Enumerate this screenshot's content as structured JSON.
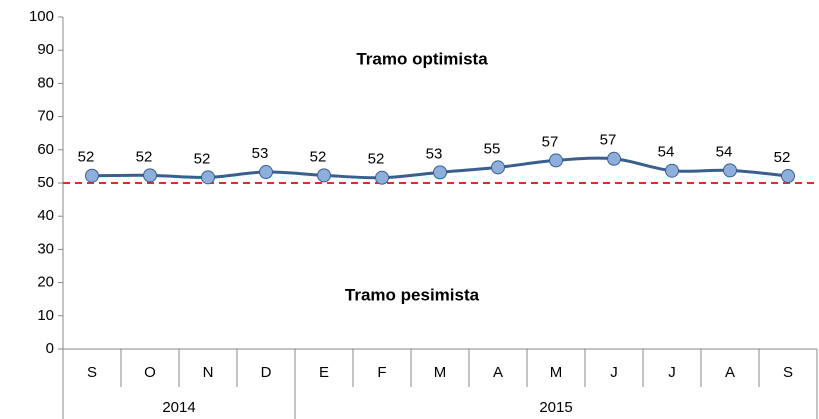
{
  "chart_data": {
    "type": "line",
    "categories": [
      "S",
      "O",
      "N",
      "D",
      "E",
      "F",
      "M",
      "A",
      "M",
      "J",
      "J",
      "A",
      "S"
    ],
    "groups": [
      {
        "label": "2014",
        "span": 4
      },
      {
        "label": "2015",
        "span": 9
      }
    ],
    "series": [
      {
        "color": "#3a5f8f",
        "marker_color": "#8eaedb",
        "values": [
          52.2,
          52.3,
          51.7,
          53.3,
          52.3,
          51.6,
          53.2,
          54.7,
          56.8,
          57.3,
          53.7,
          53.8,
          52.1
        ],
        "value_labels": [
          "52",
          "52",
          "52",
          "53",
          "52",
          "52",
          "53",
          "55",
          "57",
          "57",
          "54",
          "54",
          "52"
        ]
      }
    ],
    "reference_line": {
      "value": 50,
      "color": "#e8282b"
    },
    "annotations": [
      "Tramo optimista",
      "Tramo pesimista"
    ],
    "ylim": [
      0,
      100
    ],
    "yticks": [
      0,
      10,
      20,
      30,
      40,
      50,
      60,
      70,
      80,
      90,
      100
    ],
    "grid": false
  }
}
